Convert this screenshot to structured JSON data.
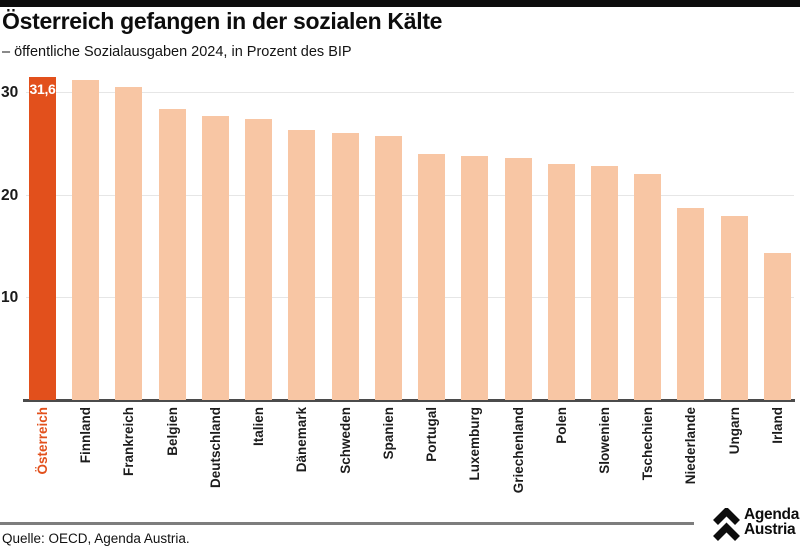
{
  "header": {
    "title": "Österreich gefangen in der sozialen Kälte",
    "subtitle": "– öffentliche Sozialausgaben 2024, in Prozent des BIP"
  },
  "chart_data": {
    "type": "bar",
    "title": "Österreich gefangen in der sozialen Kälte",
    "subtitle": "– öffentliche Sozialausgaben 2024, in Prozent des BIP",
    "categories": [
      "Österreich",
      "Finnland",
      "Frankreich",
      "Belgien",
      "Deutschland",
      "Italien",
      "Dänemark",
      "Schweden",
      "Spanien",
      "Portugal",
      "Luxemburg",
      "Griechenland",
      "Polen",
      "Slowenien",
      "Tschechien",
      "Niederlande",
      "Ungarn",
      "Irland"
    ],
    "values": [
      31.6,
      31.3,
      30.6,
      28.5,
      27.8,
      27.5,
      26.4,
      26.1,
      25.8,
      24.1,
      23.9,
      23.7,
      23.1,
      22.9,
      22.1,
      18.8,
      18.0,
      14.4
    ],
    "highlight": {
      "index": 0,
      "label": "31,6"
    },
    "yticks": [
      10,
      20,
      30
    ],
    "ylim": [
      0,
      33
    ],
    "grid": true,
    "legend": false,
    "colors": {
      "bar": "#f8c6a4",
      "highlight": "#e2501c",
      "axis": "#4b4b4b",
      "grid": "#e6e6e6",
      "tick_text": "#1a1a1a",
      "label_text": "#1c1c1c"
    }
  },
  "footer": {
    "source": "Quelle: OECD, Agenda Austria.",
    "logo_line1": "Agenda",
    "logo_line2": "Austria"
  }
}
